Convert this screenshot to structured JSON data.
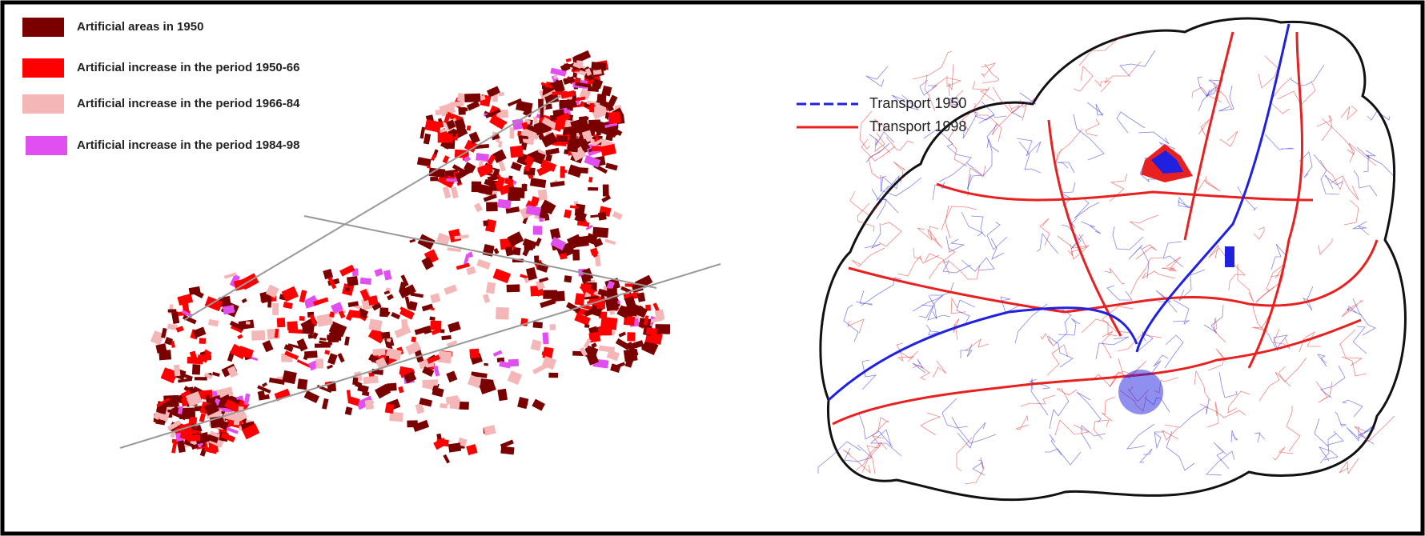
{
  "left_map": {
    "legend": [
      {
        "label": "Artificial areas in 1950",
        "color": "#7a0000"
      },
      {
        "label": "Artificial increase in the period 1950-66",
        "color": "#ff0000"
      },
      {
        "label": "Artificial increase in the period 1966-84",
        "color": "#f4b6b6"
      },
      {
        "label": "Artificial increase in the period 1984-98",
        "color": "#e050f0"
      }
    ]
  },
  "right_map": {
    "legend": [
      {
        "label": "Transport 1950",
        "color": "#2020e0"
      },
      {
        "label": "Transport 1998",
        "color": "#e82020"
      }
    ]
  }
}
